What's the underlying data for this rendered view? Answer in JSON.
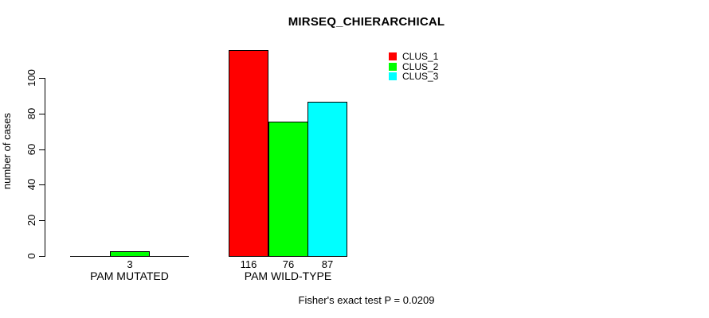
{
  "chart_data": {
    "type": "bar",
    "title": "MIRSEQ_CHIERARCHICAL",
    "xlabel": "",
    "ylabel": "number of cases",
    "categories": [
      "PAM MUTATED",
      "PAM WILD-TYPE"
    ],
    "series": [
      {
        "name": "CLUS_1",
        "color": "#ff0000",
        "values": [
          0,
          116
        ]
      },
      {
        "name": "CLUS_2",
        "color": "#00ff00",
        "values": [
          3,
          76
        ]
      },
      {
        "name": "CLUS_3",
        "color": "#00ffff",
        "values": [
          0,
          87
        ]
      }
    ],
    "bar_value_labels": [
      [
        null,
        "3",
        null
      ],
      [
        "116",
        "76",
        "87"
      ]
    ],
    "yticks": [
      0,
      20,
      40,
      60,
      80,
      100
    ],
    "ylim": [
      0,
      116
    ],
    "grid": false,
    "bar_border_color": "#000000",
    "legend": {
      "position": "top-right",
      "entries": [
        "CLUS_1",
        "CLUS_2",
        "CLUS_3"
      ]
    },
    "annotation": "Fisher's exact test P = 0.0209"
  }
}
